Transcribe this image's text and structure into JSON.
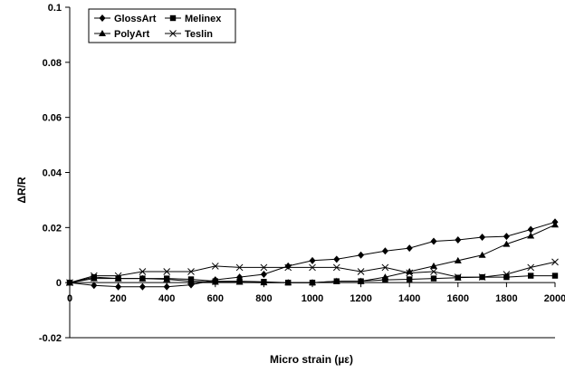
{
  "chart_data": {
    "type": "line",
    "xlabel": "Micro strain (µε)",
    "ylabel": "ΔR/R",
    "xlim": [
      0,
      2000
    ],
    "ylim": [
      -0.02,
      0.1
    ],
    "x_ticks": [
      0,
      200,
      400,
      600,
      800,
      1000,
      1200,
      1400,
      1600,
      1800,
      2000
    ],
    "x_tick_labels": [
      "0",
      "200",
      "400",
      "600",
      "800",
      "1000",
      "1200",
      "1400",
      "1600",
      "1800",
      "2000"
    ],
    "y_ticks": [
      -0.02,
      0,
      0.02,
      0.04,
      0.06,
      0.08,
      0.1
    ],
    "y_tick_labels": [
      "-0.02",
      "0",
      "0.02",
      "0.04",
      "0.06",
      "0.08",
      "0.1"
    ],
    "grid": false,
    "legend_position": "top-left",
    "x": [
      0,
      100,
      200,
      300,
      400,
      500,
      600,
      700,
      800,
      900,
      1000,
      1100,
      1200,
      1300,
      1400,
      1500,
      1600,
      1700,
      1800,
      1900,
      2000
    ],
    "series": [
      {
        "name": "GlossArt",
        "marker": "diamond",
        "color": "#000000",
        "values": [
          0,
          -0.001,
          -0.0015,
          -0.0015,
          -0.0015,
          -0.0008,
          0.001,
          0.002,
          0.003,
          0.006,
          0.008,
          0.0085,
          0.01,
          0.0115,
          0.0125,
          0.015,
          0.0155,
          0.0165,
          0.0168,
          0.0193,
          0.022
        ]
      },
      {
        "name": "Melinex",
        "marker": "square",
        "color": "#000000",
        "values": [
          0,
          0.002,
          0.0015,
          0.0015,
          0.0015,
          0.0012,
          0.0005,
          0.0005,
          0.0003,
          0,
          0,
          0.0005,
          0.0005,
          0.001,
          0.0012,
          0.0015,
          0.0018,
          0.002,
          0.002,
          0.0025,
          0.0025
        ]
      },
      {
        "name": "PolyArt",
        "marker": "triangle",
        "color": "#000000",
        "values": [
          0,
          0.0015,
          0.0015,
          0.0015,
          0.0012,
          0.0005,
          0.0002,
          0.0002,
          0,
          0,
          0,
          0.0005,
          0.0005,
          0.002,
          0.004,
          0.006,
          0.008,
          0.01,
          0.014,
          0.017,
          0.021
        ]
      },
      {
        "name": "Teslin",
        "marker": "x",
        "color": "#000000",
        "values": [
          0,
          0.0025,
          0.0025,
          0.004,
          0.004,
          0.004,
          0.006,
          0.0055,
          0.0055,
          0.0055,
          0.0055,
          0.0055,
          0.004,
          0.0055,
          0.0035,
          0.004,
          0.002,
          0.002,
          0.003,
          0.0055,
          0.0075
        ]
      }
    ]
  }
}
